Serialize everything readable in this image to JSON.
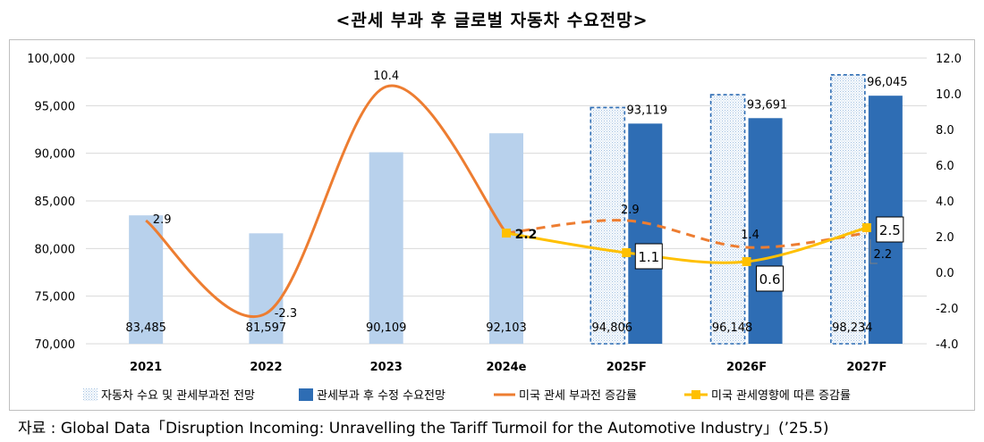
{
  "chart_data": {
    "type": "bar",
    "title": "<관세 부과 후 글로벌 자동차 수요전망>",
    "categories": [
      "2021",
      "2022",
      "2023",
      "2024e",
      "2025F",
      "2026F",
      "2027F"
    ],
    "ylim": [
      70000,
      100000
    ],
    "y2lim": [
      -4.0,
      12.0
    ],
    "yticks": [
      "100,000",
      "95,000",
      "90,000",
      "85,000",
      "80,000",
      "75,000",
      "70,000"
    ],
    "y2ticks": [
      "12.0",
      "10.0",
      "8.0",
      "6.0",
      "4.0",
      "2.0",
      "0.0",
      "-2.0",
      "-4.0"
    ],
    "grid": true,
    "legend_position": "bottom",
    "series": [
      {
        "name": "자동차 수요 및 관세부과전 전망",
        "type": "bar",
        "axis": "left",
        "values": [
          83485,
          81597,
          90109,
          92103,
          94806,
          96148,
          98234
        ],
        "labels": [
          "83,485",
          "81,597",
          "90,109",
          "92,103",
          "94,806",
          "96,148",
          "98,234"
        ],
        "color": "#b8d1ec",
        "forecast_style": "dotted-fill-dashed-border"
      },
      {
        "name": "관세부과 후 수정 수요전망",
        "type": "bar",
        "axis": "left",
        "values": [
          null,
          null,
          null,
          null,
          93119,
          93691,
          96045
        ],
        "labels": [
          "",
          "",
          "",
          "",
          "93,119",
          "93,691",
          "96,045"
        ],
        "color": "#2e6db4"
      },
      {
        "name": "미국 관세 부과전 증감률",
        "type": "line",
        "axis": "right",
        "values": [
          2.9,
          -2.3,
          10.4,
          2.2,
          2.9,
          1.4,
          2.2
        ],
        "labels": [
          "2.9",
          "-2.3",
          "10.4",
          "2.2",
          "2.9",
          "1.4",
          "2.2"
        ],
        "color": "#ed7d31",
        "dashed_from_index": 3
      },
      {
        "name": "미국 관세영향에 따른 증감률",
        "type": "line",
        "axis": "right",
        "values": [
          null,
          null,
          null,
          2.2,
          1.1,
          0.6,
          2.5
        ],
        "labels": [
          "",
          "",
          "",
          "2.2",
          "1.1",
          "0.6",
          "2.5"
        ],
        "color": "#ffc000"
      }
    ]
  },
  "source_note": "자료 : Global Data「Disruption Incoming: Unravelling the Tariff Turmoil for the Automotive Industry」(’25.5)"
}
